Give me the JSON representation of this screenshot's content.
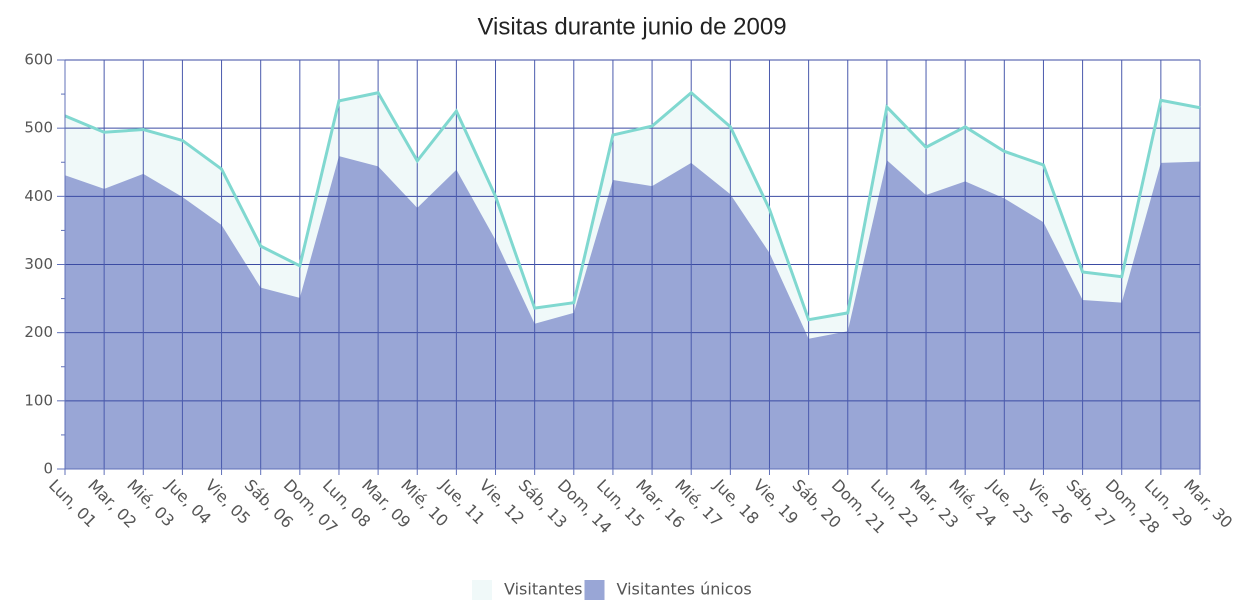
{
  "chart_data": {
    "type": "area",
    "title": "Visitas durante junio de 2009",
    "categories": [
      "Lun, 01",
      "Mar, 02",
      "Mié, 03",
      "Jue, 04",
      "Vie, 05",
      "Sáb, 06",
      "Dom, 07",
      "Lun, 08",
      "Mar, 09",
      "Mié, 10",
      "Jue, 11",
      "Vie, 12",
      "Sáb, 13",
      "Dom, 14",
      "Lun, 15",
      "Mar, 16",
      "Mié, 17",
      "Jue, 18",
      "Vie, 19",
      "Sáb, 20",
      "Dom, 21",
      "Lun, 22",
      "Mar, 23",
      "Mié, 24",
      "Jue, 25",
      "Vie, 26",
      "Sáb, 27",
      "Dom, 28",
      "Lun, 29",
      "Mar, 30"
    ],
    "series": [
      {
        "name": "Visitantes",
        "color": "#80d8d0",
        "fill": "#f0f9f9",
        "values": [
          518,
          494,
          498,
          482,
          440,
          327,
          298,
          540,
          552,
          452,
          525,
          400,
          236,
          244,
          490,
          503,
          552,
          502,
          381,
          219,
          229,
          531,
          472,
          502,
          466,
          446,
          289,
          282,
          541,
          530
        ]
      },
      {
        "name": "Visitantes únicos",
        "color": "#99a6d6",
        "fill": "#99a6d6",
        "values": [
          431,
          411,
          433,
          399,
          358,
          266,
          251,
          459,
          444,
          383,
          439,
          336,
          213,
          229,
          424,
          415,
          449,
          403,
          317,
          191,
          202,
          453,
          402,
          422,
          397,
          362,
          248,
          244,
          449,
          451
        ]
      }
    ],
    "ylim": [
      0,
      600
    ],
    "yticks": [
      0,
      100,
      200,
      300,
      400,
      500,
      600
    ],
    "grid": true,
    "legend": "bottom"
  }
}
